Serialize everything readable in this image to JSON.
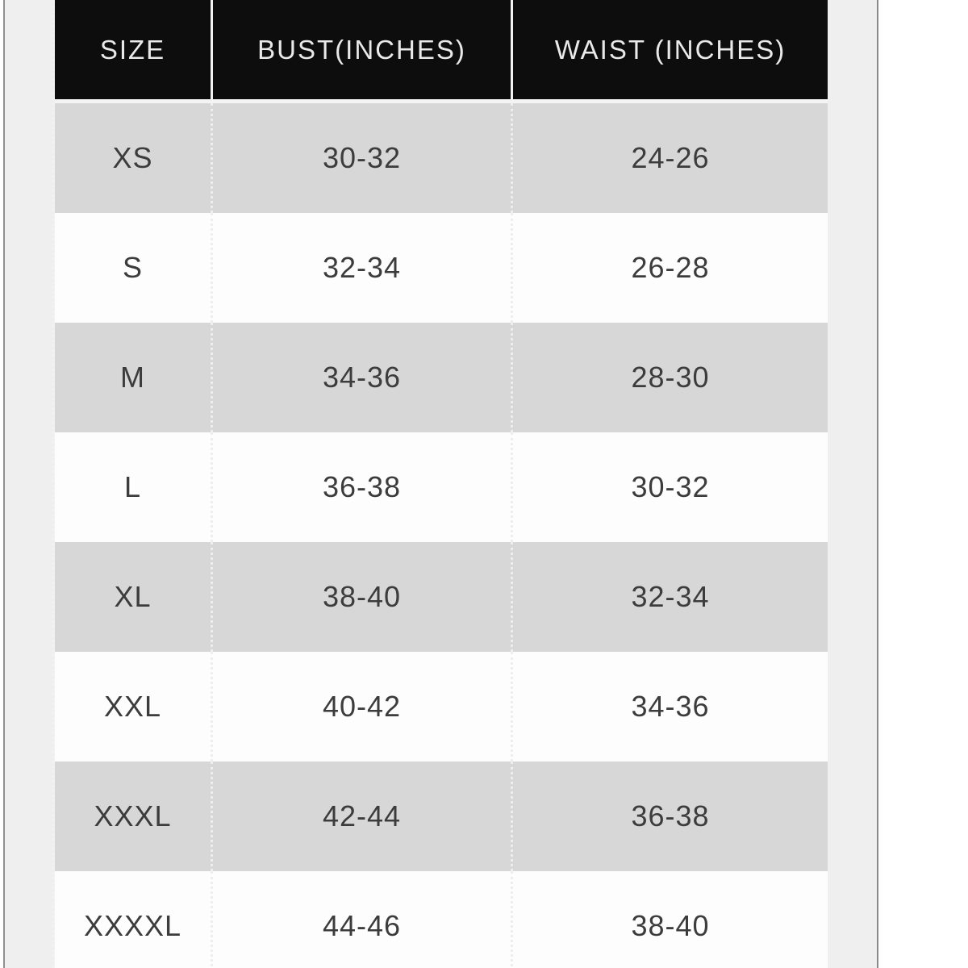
{
  "table": {
    "columns": [
      "SIZE",
      "BUST(INCHES)",
      "WAIST (INCHES)"
    ],
    "rows": [
      {
        "size": "XS",
        "bust": "30-32",
        "waist": "24-26"
      },
      {
        "size": "S",
        "bust": "32-34",
        "waist": "26-28"
      },
      {
        "size": "M",
        "bust": "34-36",
        "waist": "28-30"
      },
      {
        "size": "L",
        "bust": "36-38",
        "waist": "30-32"
      },
      {
        "size": "XL",
        "bust": "38-40",
        "waist": "32-34"
      },
      {
        "size": "XXL",
        "bust": "40-42",
        "waist": "34-36"
      },
      {
        "size": "XXXL",
        "bust": "42-44",
        "waist": "36-38"
      },
      {
        "size": "XXXXL",
        "bust": "44-46",
        "waist": "38-40"
      }
    ]
  },
  "colors": {
    "header_background": "#0d0d0d",
    "header_text": "#e9e9e9",
    "row_gray": "#d8d7d7",
    "row_white": "#fdfdfd",
    "page_margin": "#f0efef",
    "border_line": "#8f8f8f",
    "body_text": "#3c3c3c"
  }
}
